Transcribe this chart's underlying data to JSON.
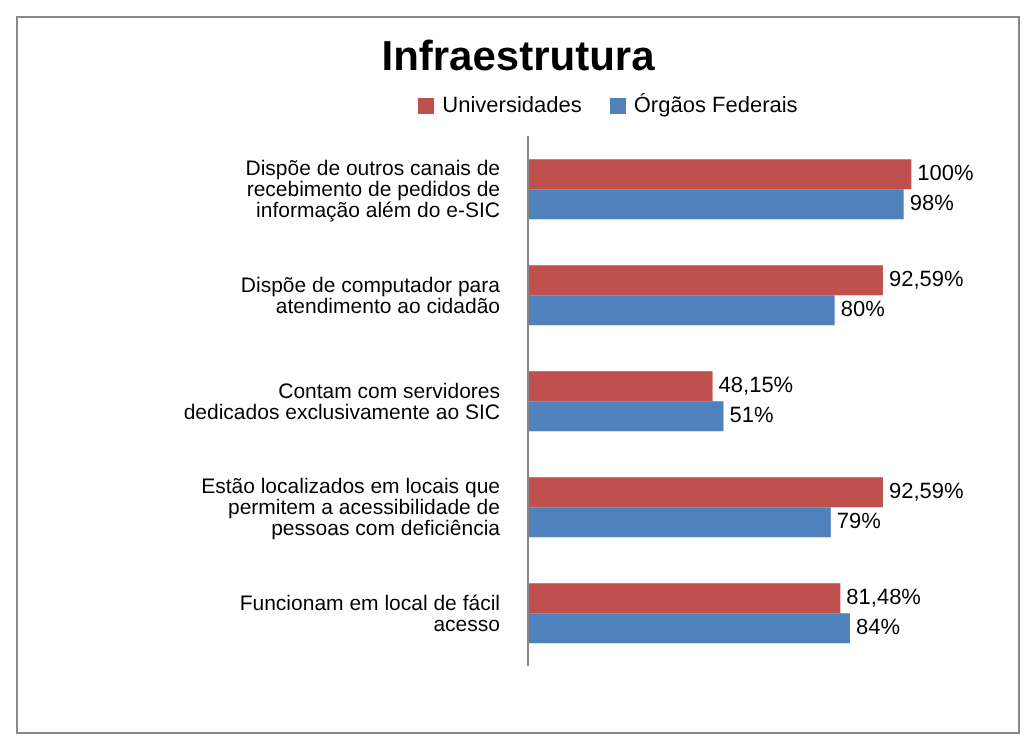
{
  "chart_data": {
    "type": "bar",
    "orientation": "horizontal",
    "title": "Infraestrutura",
    "categories": [
      "Dispõe de outros canais de recebimento de pedidos de informação além do e-SIC",
      "Dispõe de computador para atendimento ao cidadão",
      "Contam com servidores dedicados exclusivamente ao SIC",
      "Estão localizados em locais que permitem a acessibilidade de pessoas com deficiência",
      "Funcionam em local de fácil acesso"
    ],
    "series": [
      {
        "name": "Universidades",
        "color": "#c0504d",
        "values": [
          100,
          92.59,
          48.15,
          92.59,
          81.48
        ],
        "value_labels": [
          "100%",
          "92,59%",
          "48,15%",
          "92,59%",
          "81,48%"
        ]
      },
      {
        "name": "Órgãos Federais",
        "color": "#4f81bd",
        "values": [
          98,
          80,
          51,
          79,
          84
        ],
        "value_labels": [
          "98%",
          "80%",
          "51%",
          "79%",
          "84%"
        ]
      }
    ],
    "tick_labels": "y",
    "legend": "top"
  }
}
